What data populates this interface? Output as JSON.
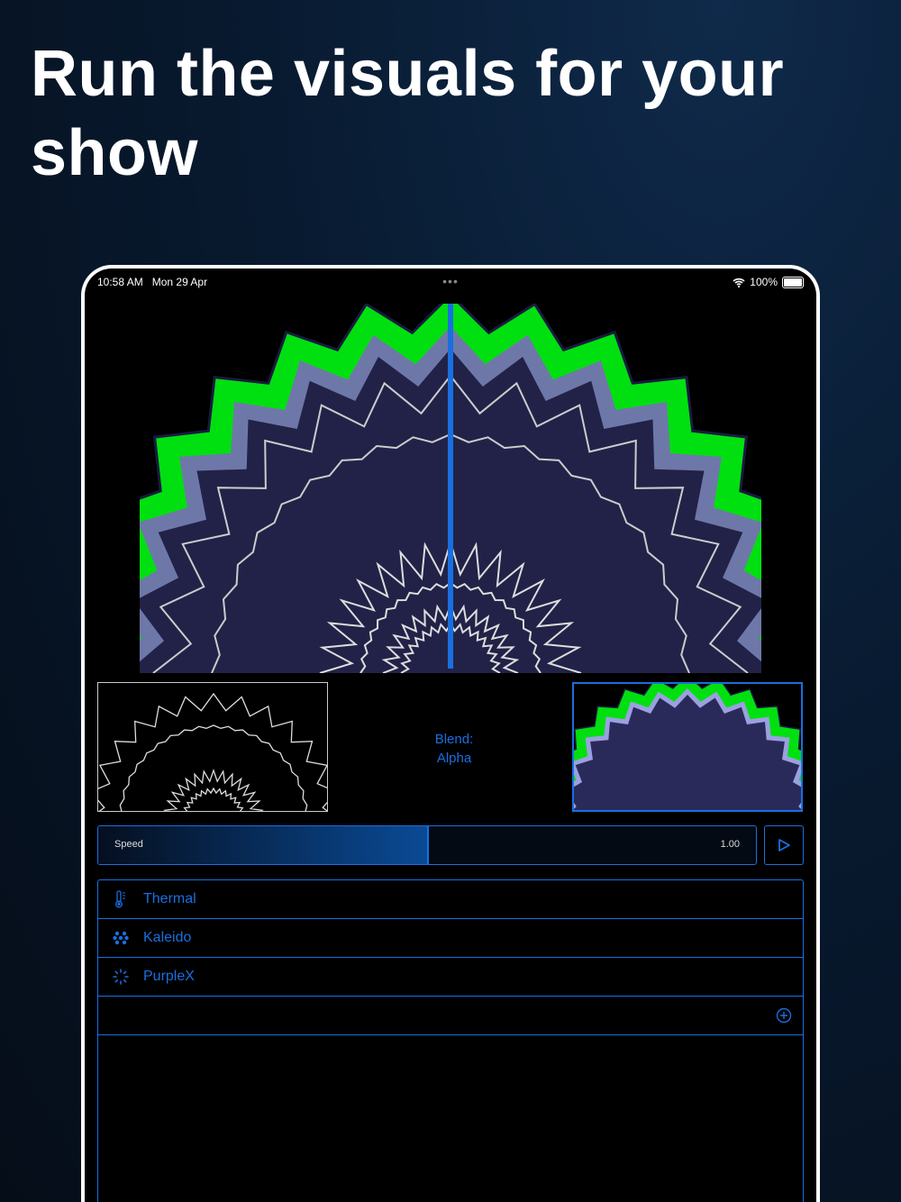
{
  "headline": "Run the visuals for your show",
  "status_bar": {
    "time": "10:58 AM",
    "date": "Mon 29 Apr",
    "battery": "100%",
    "more": "•••"
  },
  "blend": {
    "label": "Blend:",
    "value": "Alpha"
  },
  "speed": {
    "label": "Speed",
    "value": "1.00",
    "fill_fraction": 0.5
  },
  "colors": {
    "accent": "#1a6fe0",
    "green": "#00e010",
    "lavender": "#6e78a8",
    "navy": "#222248"
  },
  "visuals": [
    {
      "name": "Thermal",
      "icon": "thermometer-icon"
    },
    {
      "name": "Kaleido",
      "icon": "dots-cluster-icon"
    },
    {
      "name": "PurpleX",
      "icon": "spinner-icon"
    }
  ],
  "add_icon": "plus-circle-icon",
  "play_icon": "play-icon"
}
